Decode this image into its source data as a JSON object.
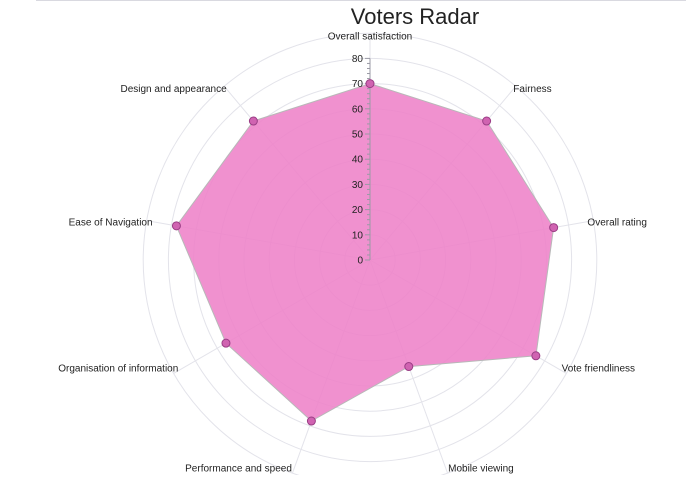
{
  "chart_data": {
    "type": "radar",
    "title": "Voters Radar",
    "categories": [
      "Overall satisfaction",
      "Fairness",
      "Overall rating",
      "Vote friendliness",
      "Mobile viewing",
      "Performance and speed",
      "Organisation of information",
      "Ease of Navigation",
      "Design and appearance"
    ],
    "values": [
      70,
      72,
      74,
      76,
      45,
      68,
      66,
      78,
      72
    ],
    "r_ticks": [
      0,
      10,
      20,
      30,
      40,
      50,
      60,
      70,
      80
    ],
    "rlim": [
      0,
      90
    ],
    "grid": true,
    "colors": {
      "fill": "#ee82c8",
      "stroke": "#b8b8b8",
      "marker": "#d063b1",
      "marker_stroke": "#9a3d85",
      "grid": "#e3e3ea",
      "axis": "#9a9aa5",
      "text": "#222222"
    }
  }
}
